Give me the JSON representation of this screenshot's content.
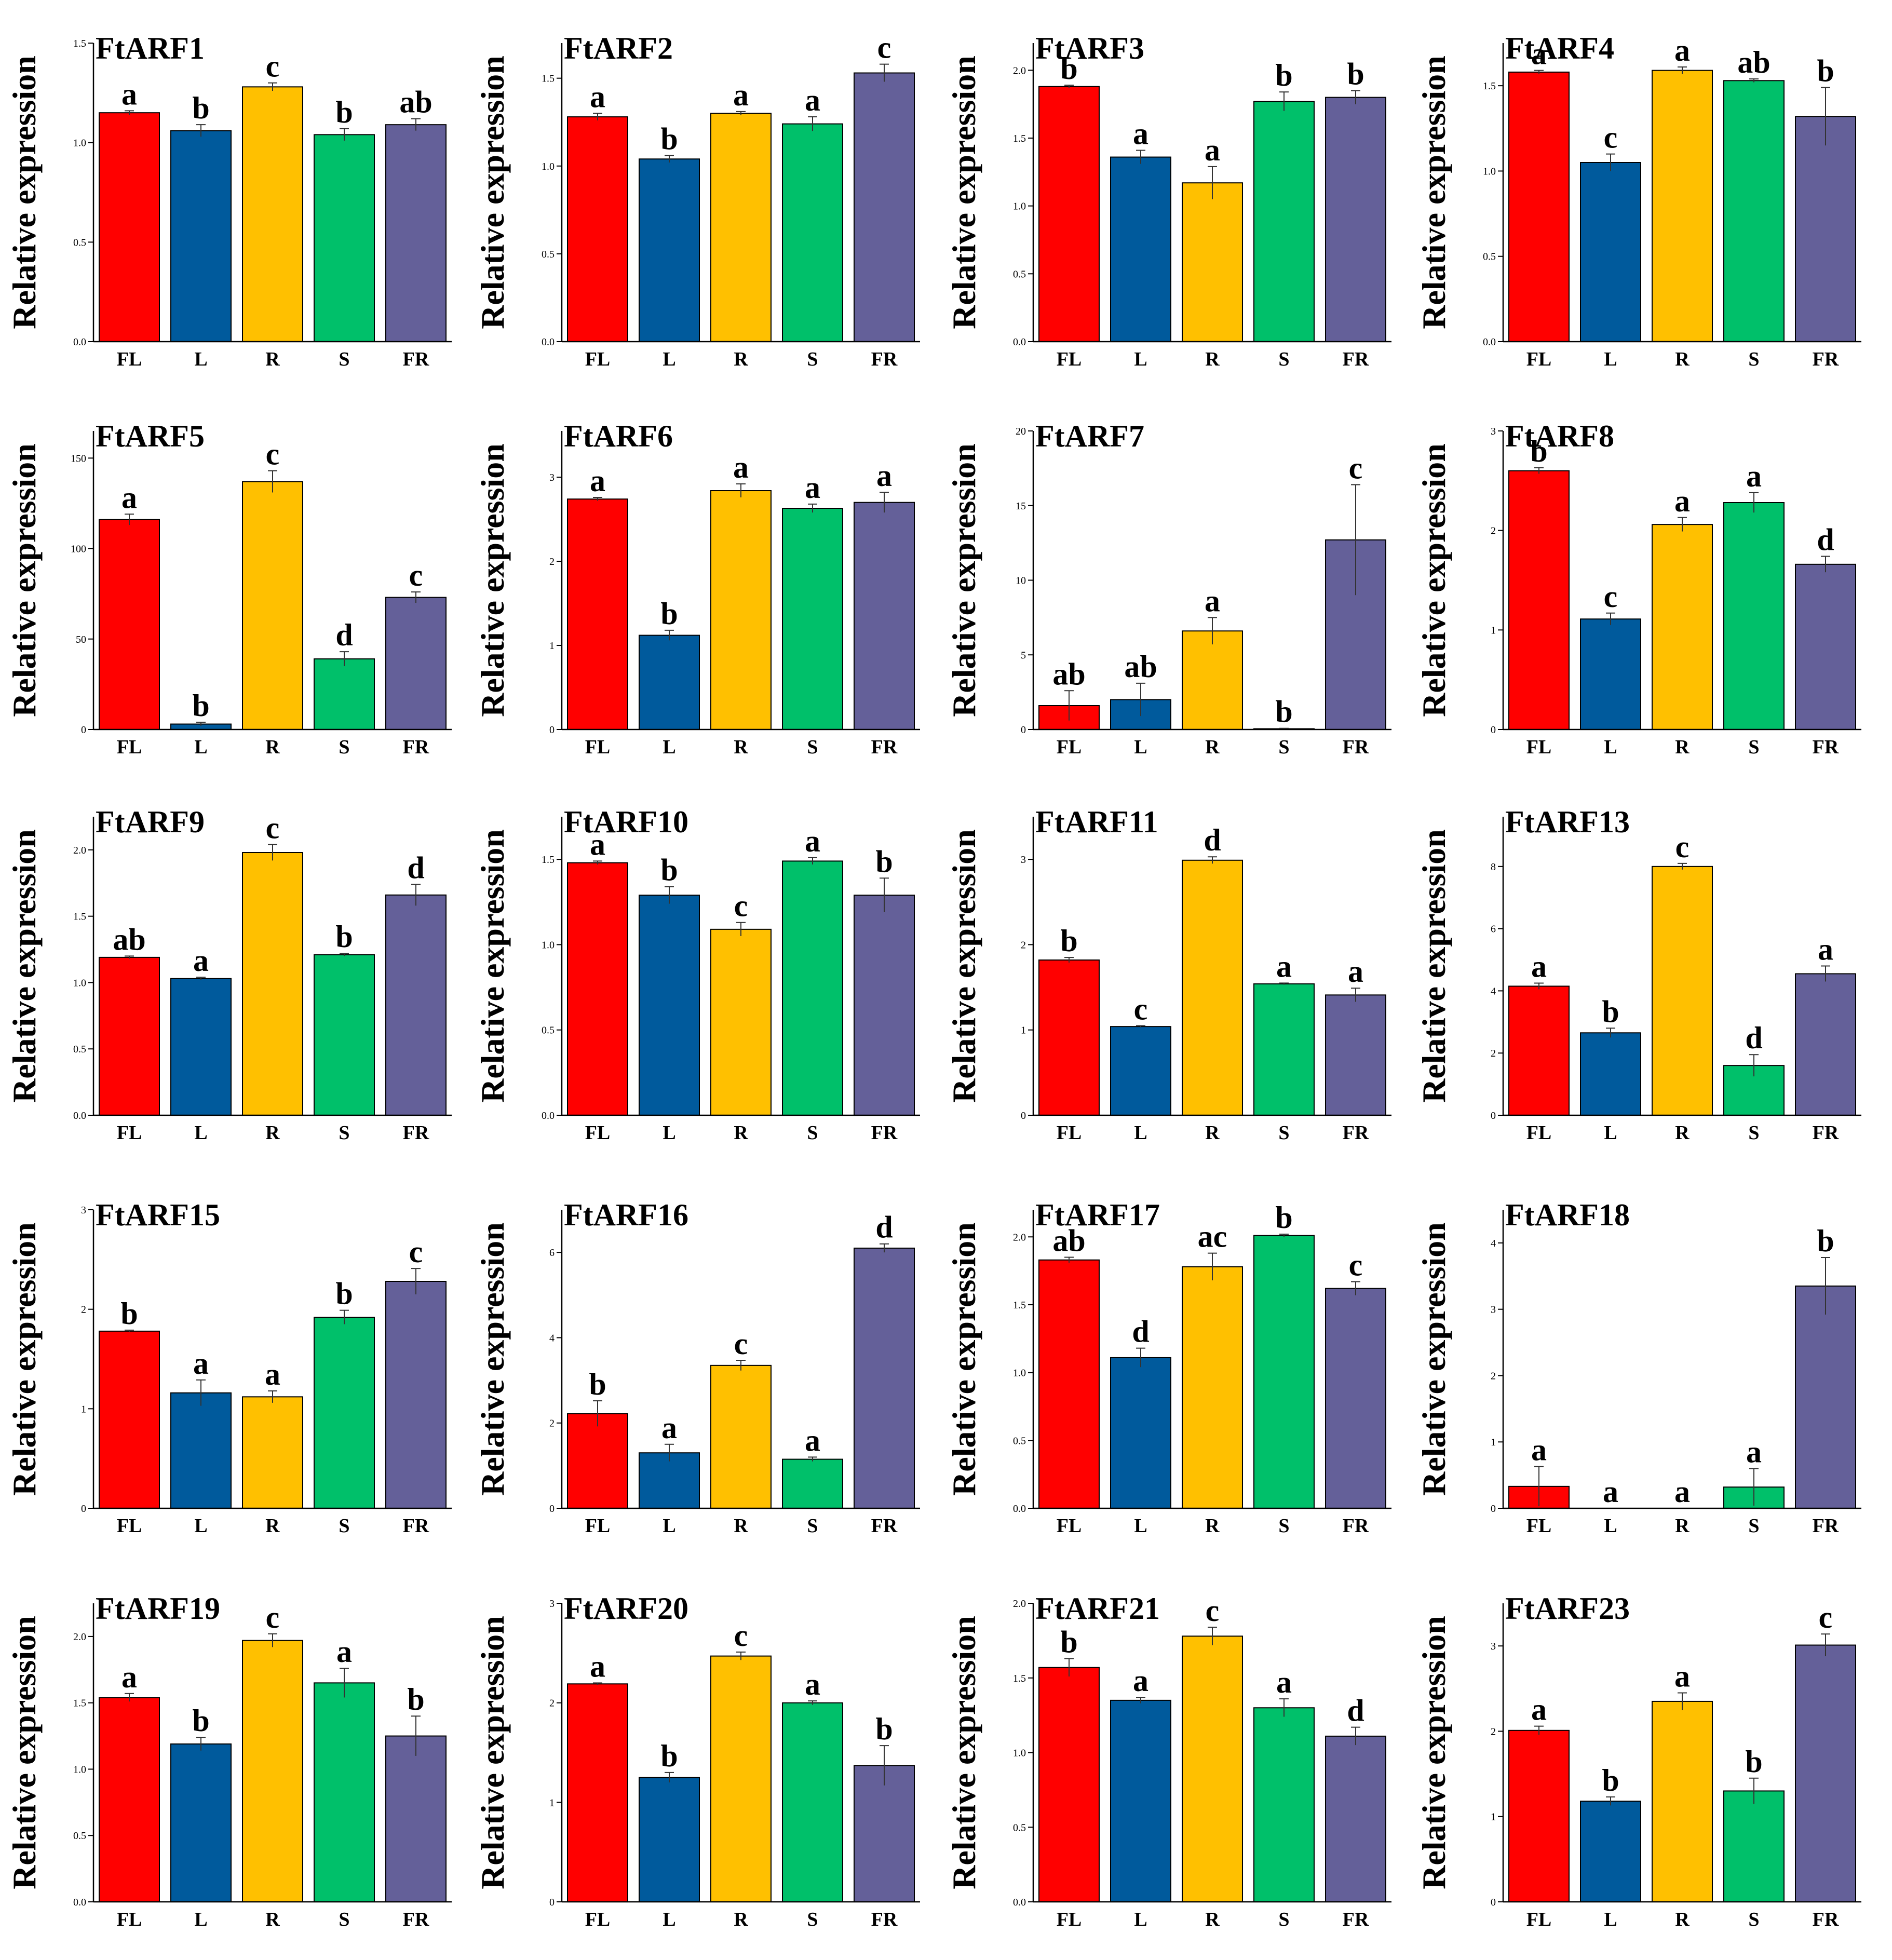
{
  "figure": {
    "ylabel": "Relative expression",
    "colors": [
      "#ff0000",
      "#005a9c",
      "#ffc000",
      "#00c06a",
      "#646099"
    ]
  },
  "chart_data": [
    {
      "type": "bar",
      "title": "FtARF1",
      "ylabel": "Relative expression",
      "categories": [
        "FL",
        "L",
        "R",
        "S",
        "FR"
      ],
      "values": [
        1.15,
        1.06,
        1.28,
        1.04,
        1.09
      ],
      "errors": [
        0.01,
        0.03,
        0.02,
        0.03,
        0.03
      ],
      "letters": [
        "a",
        "b",
        "c",
        "b",
        "ab"
      ],
      "ylim": [
        0,
        1.5
      ],
      "yticks": [
        "0.0",
        "0.5",
        "1.0",
        "1.5"
      ]
    },
    {
      "type": "bar",
      "title": "FtARF2",
      "ylabel": "Relative expression",
      "categories": [
        "FL",
        "L",
        "R",
        "S",
        "FR"
      ],
      "values": [
        1.28,
        1.04,
        1.3,
        1.24,
        1.53
      ],
      "errors": [
        0.02,
        0.02,
        0.01,
        0.04,
        0.05
      ],
      "letters": [
        "a",
        "b",
        "a",
        "a",
        "c"
      ],
      "ylim": [
        0,
        1.7
      ],
      "yticks": [
        "0.0",
        "0.5",
        "1.0",
        "1.5"
      ]
    },
    {
      "type": "bar",
      "title": "FtARF3",
      "ylabel": "Relative expression",
      "categories": [
        "FL",
        "L",
        "R",
        "S",
        "FR"
      ],
      "values": [
        1.88,
        1.36,
        1.17,
        1.77,
        1.8
      ],
      "errors": [
        0.01,
        0.05,
        0.12,
        0.07,
        0.05
      ],
      "letters": [
        "b",
        "a",
        "a",
        "b",
        "b"
      ],
      "ylim": [
        0,
        2.2
      ],
      "yticks": [
        "0.0",
        "0.5",
        "1.0",
        "1.5",
        "2.0"
      ]
    },
    {
      "type": "bar",
      "title": "FtARF4",
      "ylabel": "Relative expression",
      "categories": [
        "FL",
        "L",
        "R",
        "S",
        "FR"
      ],
      "values": [
        1.58,
        1.05,
        1.59,
        1.53,
        1.32
      ],
      "errors": [
        0.01,
        0.05,
        0.02,
        0.01,
        0.17
      ],
      "letters": [
        "a",
        "c",
        "a",
        "ab",
        "b"
      ],
      "ylim": [
        0,
        1.75
      ],
      "yticks": [
        "0.0",
        "0.5",
        "1.0",
        "1.5"
      ]
    },
    {
      "type": "bar",
      "title": "FtARF5",
      "ylabel": "Relative expression",
      "categories": [
        "FL",
        "L",
        "R",
        "S",
        "FR"
      ],
      "values": [
        116,
        3,
        137,
        39,
        73
      ],
      "errors": [
        3,
        1,
        6,
        4,
        3
      ],
      "letters": [
        "a",
        "b",
        "c",
        "d",
        "c"
      ],
      "ylim": [
        0,
        165
      ],
      "yticks": [
        "0",
        "50",
        "100",
        "150"
      ]
    },
    {
      "type": "bar",
      "title": "FtARF6",
      "ylabel": "Relative expression",
      "categories": [
        "FL",
        "L",
        "R",
        "S",
        "FR"
      ],
      "values": [
        2.74,
        1.12,
        2.84,
        2.63,
        2.7
      ],
      "errors": [
        0.02,
        0.06,
        0.08,
        0.05,
        0.12
      ],
      "letters": [
        "a",
        "b",
        "a",
        "a",
        "a"
      ],
      "ylim": [
        0,
        3.55
      ],
      "yticks": [
        "0",
        "1",
        "2",
        "3"
      ]
    },
    {
      "type": "bar",
      "title": "FtARF7",
      "ylabel": "Relative expression",
      "categories": [
        "FL",
        "L",
        "R",
        "S",
        "FR"
      ],
      "values": [
        1.6,
        2.0,
        6.6,
        0.05,
        12.7
      ],
      "errors": [
        1.0,
        1.1,
        0.9,
        0.03,
        3.7
      ],
      "letters": [
        "ab",
        "ab",
        "a",
        "b",
        "c"
      ],
      "ylim": [
        0,
        20
      ],
      "yticks": [
        "0",
        "5",
        "10",
        "15",
        "20"
      ]
    },
    {
      "type": "bar",
      "title": "FtARF8",
      "ylabel": "Relative expression",
      "categories": [
        "FL",
        "L",
        "R",
        "S",
        "FR"
      ],
      "values": [
        2.6,
        1.11,
        2.06,
        2.28,
        1.66
      ],
      "errors": [
        0.03,
        0.06,
        0.07,
        0.1,
        0.08
      ],
      "letters": [
        "b",
        "c",
        "a",
        "a",
        "d"
      ],
      "ylim": [
        0,
        3.0
      ],
      "yticks": [
        "0",
        "1",
        "2",
        "3"
      ]
    },
    {
      "type": "bar",
      "title": "FtARF9",
      "ylabel": "Relative expression",
      "categories": [
        "FL",
        "L",
        "R",
        "S",
        "FR"
      ],
      "values": [
        1.19,
        1.03,
        1.98,
        1.21,
        1.66
      ],
      "errors": [
        0.01,
        0.01,
        0.06,
        0.01,
        0.08
      ],
      "letters": [
        "ab",
        "a",
        "c",
        "b",
        "d"
      ],
      "ylim": [
        0,
        2.25
      ],
      "yticks": [
        "0.0",
        "0.5",
        "1.0",
        "1.5",
        "2.0"
      ]
    },
    {
      "type": "bar",
      "title": "FtARF10",
      "ylabel": "Relative expression",
      "categories": [
        "FL",
        "L",
        "R",
        "S",
        "FR"
      ],
      "values": [
        1.48,
        1.29,
        1.09,
        1.49,
        1.29
      ],
      "errors": [
        0.01,
        0.05,
        0.04,
        0.02,
        0.1
      ],
      "letters": [
        "a",
        "b",
        "c",
        "a",
        "b"
      ],
      "ylim": [
        0,
        1.75
      ],
      "yticks": [
        "0.0",
        "0.5",
        "1.0",
        "1.5"
      ]
    },
    {
      "type": "bar",
      "title": "FtARF11",
      "ylabel": "Relative expression",
      "categories": [
        "FL",
        "L",
        "R",
        "S",
        "FR"
      ],
      "values": [
        1.82,
        1.04,
        2.99,
        1.54,
        1.41
      ],
      "errors": [
        0.03,
        0.01,
        0.04,
        0.01,
        0.08
      ],
      "letters": [
        "b",
        "c",
        "d",
        "a",
        "a"
      ],
      "ylim": [
        0,
        3.5
      ],
      "yticks": [
        "0",
        "1",
        "2",
        "3"
      ]
    },
    {
      "type": "bar",
      "title": "FtARF13",
      "ylabel": "Relative expression",
      "categories": [
        "FL",
        "L",
        "R",
        "S",
        "FR"
      ],
      "values": [
        4.15,
        2.65,
        8.0,
        1.6,
        4.55
      ],
      "errors": [
        0.1,
        0.15,
        0.1,
        0.35,
        0.25
      ],
      "letters": [
        "a",
        "b",
        "c",
        "d",
        "a"
      ],
      "ylim": [
        0,
        9.6
      ],
      "yticks": [
        "0",
        "2",
        "4",
        "6",
        "8"
      ]
    },
    {
      "type": "bar",
      "title": "FtARF15",
      "ylabel": "Relative expression",
      "categories": [
        "FL",
        "L",
        "R",
        "S",
        "FR"
      ],
      "values": [
        1.78,
        1.16,
        1.12,
        1.92,
        2.28
      ],
      "errors": [
        0.01,
        0.13,
        0.06,
        0.07,
        0.13
      ],
      "letters": [
        "b",
        "a",
        "a",
        "b",
        "c"
      ],
      "ylim": [
        0,
        3.0
      ],
      "yticks": [
        "0",
        "1",
        "2",
        "3"
      ]
    },
    {
      "type": "bar",
      "title": "FtARF16",
      "ylabel": "Relative expression",
      "categories": [
        "FL",
        "L",
        "R",
        "S",
        "FR"
      ],
      "values": [
        2.22,
        1.3,
        3.35,
        1.15,
        6.1
      ],
      "errors": [
        0.3,
        0.2,
        0.12,
        0.05,
        0.1
      ],
      "letters": [
        "b",
        "a",
        "c",
        "a",
        "d"
      ],
      "ylim": [
        0,
        7.0
      ],
      "yticks": [
        "0",
        "2",
        "4",
        "6"
      ]
    },
    {
      "type": "bar",
      "title": "FtARF17",
      "ylabel": "Relative expression",
      "categories": [
        "FL",
        "L",
        "R",
        "S",
        "FR"
      ],
      "values": [
        1.83,
        1.11,
        1.78,
        2.01,
        1.62
      ],
      "errors": [
        0.02,
        0.07,
        0.1,
        0.01,
        0.05
      ],
      "letters": [
        "ab",
        "d",
        "ac",
        "b",
        "c"
      ],
      "ylim": [
        0,
        2.2
      ],
      "yticks": [
        "0.0",
        "0.5",
        "1.0",
        "1.5",
        "2.0"
      ]
    },
    {
      "type": "bar",
      "title": "FtARF18",
      "ylabel": "Relative expression",
      "categories": [
        "FL",
        "L",
        "R",
        "S",
        "FR"
      ],
      "values": [
        0.33,
        0.0,
        0.0,
        0.32,
        3.35
      ],
      "errors": [
        0.3,
        0.0,
        0.0,
        0.28,
        0.43
      ],
      "letters": [
        "a",
        "a",
        "a",
        "a",
        "b"
      ],
      "ylim": [
        0,
        4.5
      ],
      "yticks": [
        "0",
        "1",
        "2",
        "3",
        "4"
      ]
    },
    {
      "type": "bar",
      "title": "FtARF19",
      "ylabel": "Relative expression",
      "categories": [
        "FL",
        "L",
        "R",
        "S",
        "FR"
      ],
      "values": [
        1.54,
        1.19,
        1.97,
        1.65,
        1.25
      ],
      "errors": [
        0.03,
        0.05,
        0.05,
        0.11,
        0.15
      ],
      "letters": [
        "a",
        "b",
        "c",
        "a",
        "b"
      ],
      "ylim": [
        0,
        2.25
      ],
      "yticks": [
        "0.0",
        "0.5",
        "1.0",
        "1.5",
        "2.0"
      ]
    },
    {
      "type": "bar",
      "title": "FtARF20",
      "ylabel": "Relative expression",
      "categories": [
        "FL",
        "L",
        "R",
        "S",
        "FR"
      ],
      "values": [
        2.19,
        1.25,
        2.47,
        2.0,
        1.37
      ],
      "errors": [
        0.01,
        0.05,
        0.04,
        0.02,
        0.2
      ],
      "letters": [
        "a",
        "b",
        "c",
        "a",
        "b"
      ],
      "ylim": [
        0,
        3.0
      ],
      "yticks": [
        "0",
        "1",
        "2",
        "3"
      ]
    },
    {
      "type": "bar",
      "title": "FtARF21",
      "ylabel": "Relative expression",
      "categories": [
        "FL",
        "L",
        "R",
        "S",
        "FR"
      ],
      "values": [
        1.57,
        1.35,
        1.78,
        1.3,
        1.11
      ],
      "errors": [
        0.06,
        0.02,
        0.06,
        0.06,
        0.06
      ],
      "letters": [
        "b",
        "a",
        "c",
        "a",
        "d"
      ],
      "ylim": [
        0,
        2.0
      ],
      "yticks": [
        "0.0",
        "0.5",
        "1.0",
        "1.5",
        "2.0"
      ]
    },
    {
      "type": "bar",
      "title": "FtARF23",
      "ylabel": "Relative expression",
      "categories": [
        "FL",
        "L",
        "R",
        "S",
        "FR"
      ],
      "values": [
        2.01,
        1.18,
        2.35,
        1.3,
        3.01
      ],
      "errors": [
        0.05,
        0.05,
        0.1,
        0.15,
        0.13
      ],
      "letters": [
        "a",
        "b",
        "a",
        "b",
        "c"
      ],
      "ylim": [
        0,
        3.5
      ],
      "yticks": [
        "0",
        "1",
        "2",
        "3"
      ]
    }
  ]
}
